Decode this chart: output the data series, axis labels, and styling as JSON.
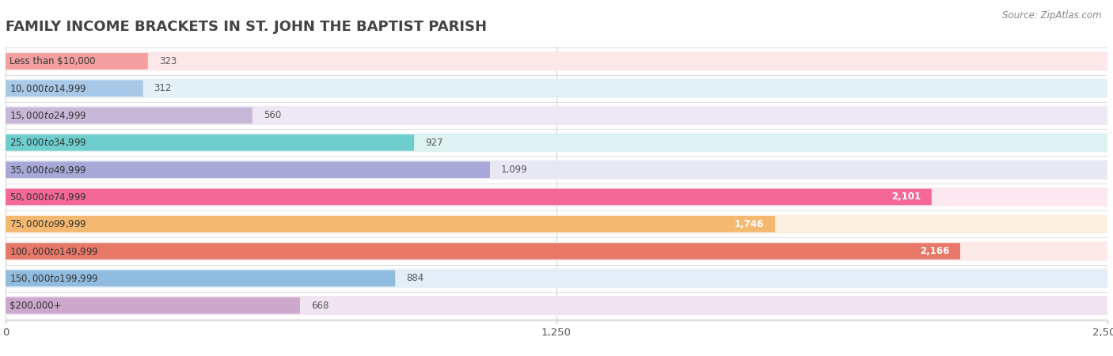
{
  "title": "FAMILY INCOME BRACKETS IN ST. JOHN THE BAPTIST PARISH",
  "source": "Source: ZipAtlas.com",
  "categories": [
    "Less than $10,000",
    "$10,000 to $14,999",
    "$15,000 to $24,999",
    "$25,000 to $34,999",
    "$35,000 to $49,999",
    "$50,000 to $74,999",
    "$75,000 to $99,999",
    "$100,000 to $149,999",
    "$150,000 to $199,999",
    "$200,000+"
  ],
  "values": [
    323,
    312,
    560,
    927,
    1099,
    2101,
    1746,
    2166,
    884,
    668
  ],
  "bar_colors": [
    "#f4a0a0",
    "#a8c8e8",
    "#c8b8d8",
    "#6ecece",
    "#a8a8d8",
    "#f46898",
    "#f5b870",
    "#e87868",
    "#90bce0",
    "#cca8cc"
  ],
  "bar_bg_colors": [
    "#fce8e8",
    "#e4f0f8",
    "#ede8f4",
    "#dff2f2",
    "#e8e8f5",
    "#fce8f0",
    "#fef0e0",
    "#fce8e6",
    "#e4eef8",
    "#f0e4f0"
  ],
  "xlim": [
    0,
    2500
  ],
  "xticks": [
    0,
    1250,
    2500
  ],
  "title_fontsize": 13,
  "background_color": "#ffffff",
  "row_bg_color": "#f5f5f5"
}
